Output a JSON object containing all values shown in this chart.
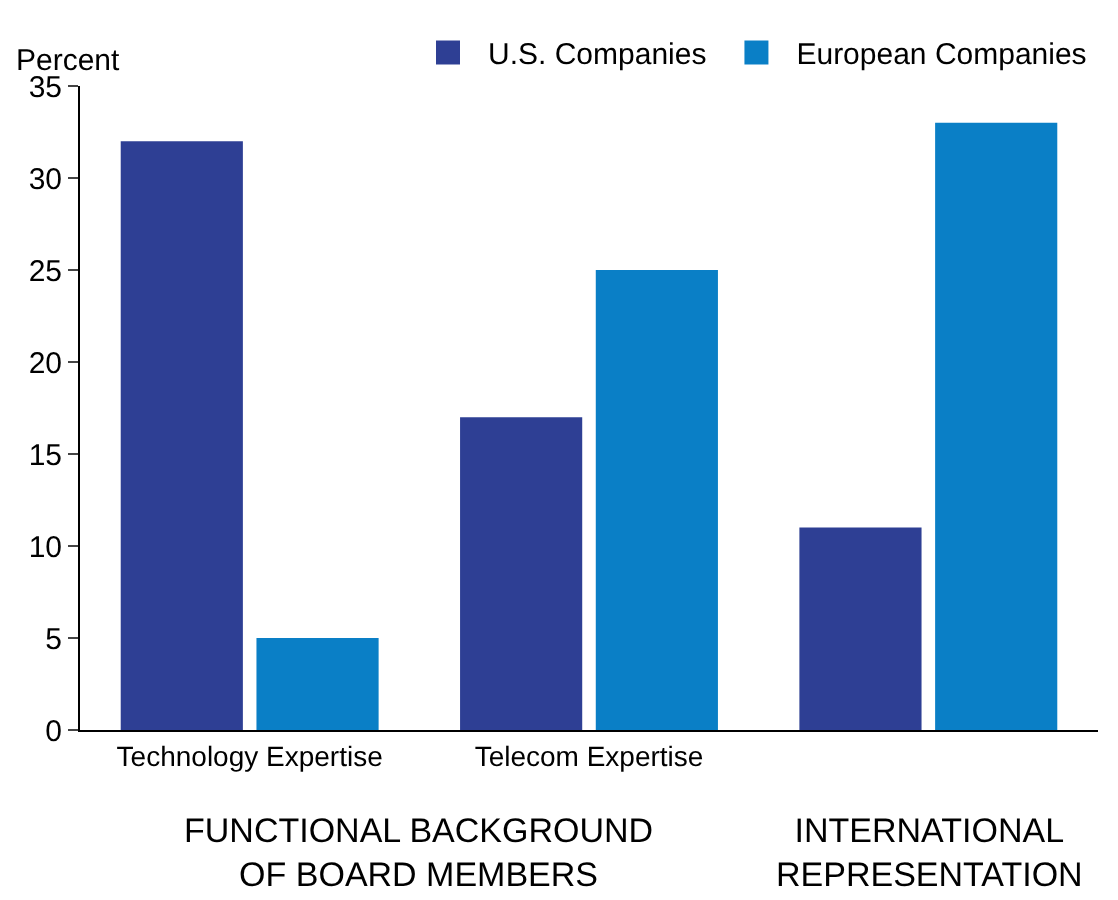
{
  "chart_data": {
    "type": "bar",
    "ylabel": "Percent",
    "categories": [
      "Technology Expertise",
      "Telecom Expertise",
      null
    ],
    "series": [
      {
        "name": "U.S. Companies",
        "color": "#2e3f94",
        "values": [
          32,
          17,
          11
        ]
      },
      {
        "name": "European Companies",
        "color": "#0a7fc6",
        "values": [
          5,
          25,
          33
        ]
      }
    ],
    "ylim": [
      0,
      35
    ],
    "yticks": [
      0,
      5,
      10,
      15,
      20,
      25,
      30,
      35
    ],
    "legend": "top",
    "annotations": [
      "FUNCTIONAL BACKGROUND\nOF BOARD MEMBERS",
      "INTERNATIONAL\nREPRESENTATION"
    ]
  }
}
